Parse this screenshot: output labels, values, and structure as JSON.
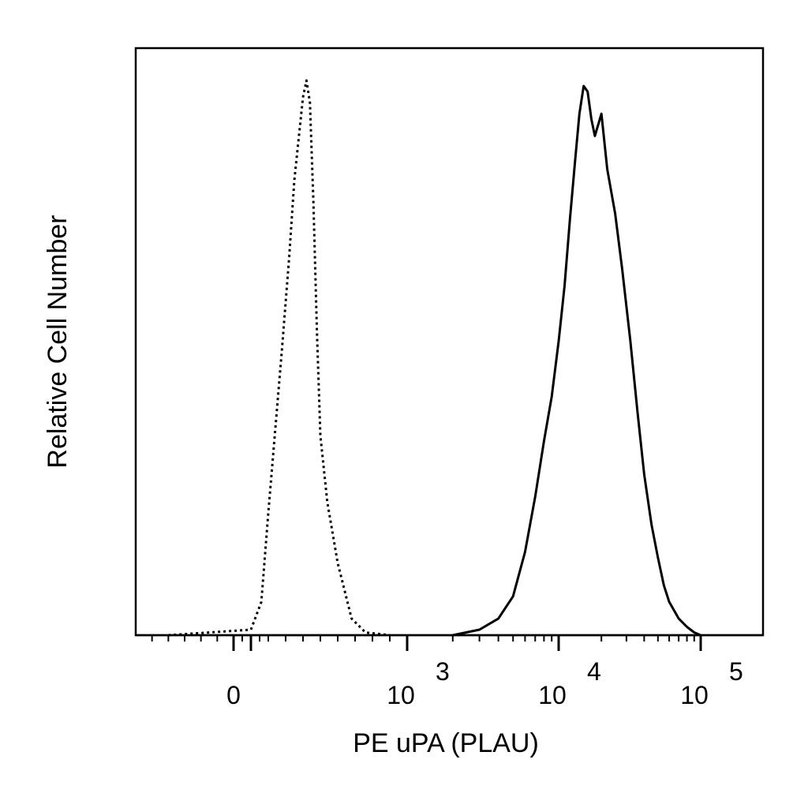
{
  "chart_data": {
    "type": "line",
    "title": "",
    "xlabel": "PE uPA (PLAU)",
    "ylabel": "Relative Cell Number",
    "x_scale": "biexponential",
    "xlim": [
      -300,
      150000
    ],
    "ylim": [
      0,
      1.05
    ],
    "grid": false,
    "legend": "none",
    "x_ticks": [
      {
        "value": 0,
        "base": "0",
        "exp": ""
      },
      {
        "value": 1000,
        "base": "10",
        "exp": "3"
      },
      {
        "value": 10000,
        "base": "10",
        "exp": "4"
      },
      {
        "value": 100000,
        "base": "10",
        "exp": "5"
      }
    ],
    "series": [
      {
        "style": "dotted",
        "color": "#000000",
        "x": [
          -200,
          100,
          160,
          200,
          240,
          280,
          320,
          350,
          380,
          400,
          420,
          440,
          460,
          480,
          500,
          540,
          600,
          680,
          760,
          900
        ],
        "y": [
          0.0,
          0.01,
          0.06,
          0.22,
          0.37,
          0.52,
          0.68,
          0.82,
          0.91,
          0.97,
          1.0,
          0.96,
          0.78,
          0.55,
          0.36,
          0.24,
          0.13,
          0.03,
          0.005,
          0.0
        ]
      },
      {
        "style": "solid",
        "color": "#000000",
        "x": [
          2000,
          3000,
          4000,
          5000,
          6000,
          7000,
          8000,
          9000,
          10000,
          11000,
          12000,
          13000,
          14000,
          15000,
          16000,
          17000,
          18000,
          20000,
          22000,
          25000,
          28000,
          32000,
          36000,
          40000,
          45000,
          50000,
          55000,
          60000,
          70000,
          80000,
          90000,
          100000
        ],
        "y": [
          0.0,
          0.01,
          0.03,
          0.07,
          0.15,
          0.25,
          0.35,
          0.43,
          0.53,
          0.63,
          0.75,
          0.85,
          0.94,
          0.99,
          0.98,
          0.93,
          0.9,
          0.94,
          0.84,
          0.76,
          0.66,
          0.53,
          0.4,
          0.29,
          0.2,
          0.14,
          0.09,
          0.06,
          0.03,
          0.015,
          0.005,
          0.0
        ]
      }
    ]
  }
}
